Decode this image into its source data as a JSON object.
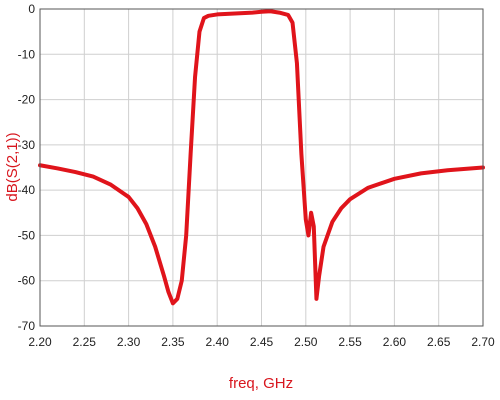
{
  "chart_data": {
    "type": "line",
    "title": "",
    "xlabel": "freq, GHz",
    "ylabel": "dB(S(2,1))",
    "xlim": [
      2.2,
      2.7
    ],
    "ylim": [
      -70,
      0
    ],
    "grid": true,
    "x_ticks": [
      "2.20",
      "2.25",
      "2.30",
      "2.35",
      "2.40",
      "2.45",
      "2.50",
      "2.55",
      "2.60",
      "2.65",
      "2.70"
    ],
    "y_ticks": [
      "0",
      "-10",
      "-20",
      "-30",
      "-40",
      "-50",
      "-60",
      "-70"
    ],
    "series": [
      {
        "color": "#e0141b",
        "x": [
          2.2,
          2.22,
          2.24,
          2.26,
          2.28,
          2.3,
          2.31,
          2.32,
          2.33,
          2.34,
          2.345,
          2.35,
          2.355,
          2.36,
          2.365,
          2.37,
          2.375,
          2.38,
          2.385,
          2.39,
          2.4,
          2.42,
          2.44,
          2.45,
          2.46,
          2.47,
          2.48,
          2.485,
          2.49,
          2.495,
          2.5,
          2.503,
          2.506,
          2.509,
          2.512,
          2.515,
          2.52,
          2.53,
          2.54,
          2.55,
          2.57,
          2.6,
          2.63,
          2.66,
          2.7
        ],
        "y": [
          -34.5,
          -35.2,
          -36.0,
          -37.0,
          -38.8,
          -41.5,
          -44.0,
          -47.5,
          -52.5,
          -59.0,
          -62.5,
          -65.0,
          -64.0,
          -60.0,
          -50.0,
          -32.0,
          -15.0,
          -5.0,
          -2.0,
          -1.5,
          -1.2,
          -1.0,
          -0.8,
          -0.6,
          -0.5,
          -0.8,
          -1.3,
          -3.0,
          -12.0,
          -32.0,
          -46.5,
          -50.0,
          -45.0,
          -48.0,
          -64.0,
          -59.0,
          -52.5,
          -47.0,
          -44.0,
          -42.0,
          -39.5,
          -37.5,
          -36.3,
          -35.6,
          -35.0
        ]
      }
    ],
    "colors": {
      "line": "#e0141b",
      "xlabel": "#d8161e",
      "ylabel": "#d8161e",
      "grid": "#cfcfcf",
      "frame": "#555555"
    }
  }
}
